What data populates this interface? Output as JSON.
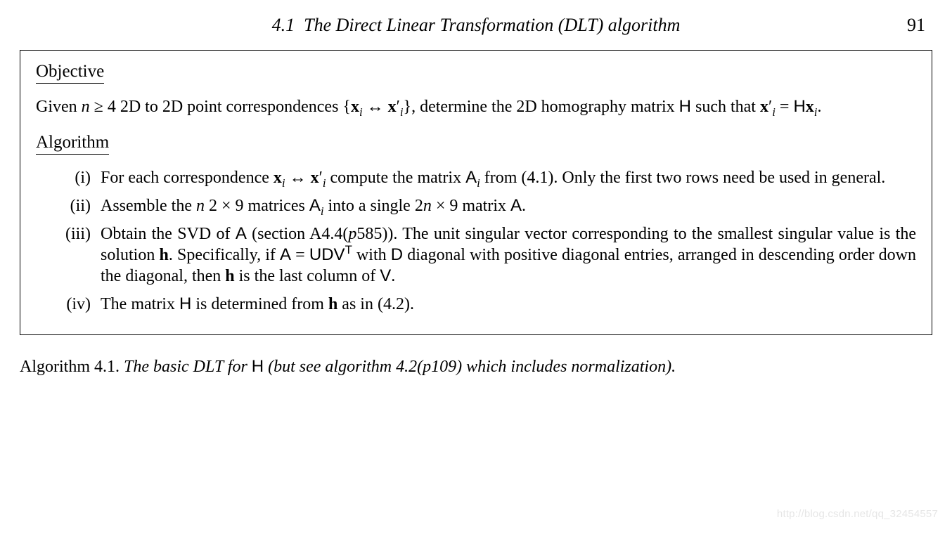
{
  "header": {
    "section_number": "4.1",
    "section_title": "The Direct Linear Transformation (DLT) algorithm",
    "page_number": "91"
  },
  "box": {
    "objective_label": "Objective",
    "objective_text_parts": {
      "p1": "Given ",
      "n": "n",
      "geq": " ≥ 4 2D to 2D point correspondences {",
      "x": "x",
      "sub_i": "i",
      "arrow": " ↔ ",
      "xprime": "x",
      "prime": "′",
      "p2": "}, determine the 2D homography matrix ",
      "H": "H",
      "p3": " such that ",
      "eq": " = ",
      "dot": "."
    },
    "algorithm_label": "Algorithm",
    "steps": [
      {
        "num": "(i)",
        "parts": {
          "a": "For each correspondence ",
          "b": " compute the matrix ",
          "Ai": "A",
          "c": " from (4.1). Only the first two rows need be used in general."
        }
      },
      {
        "num": "(ii)",
        "parts": {
          "a": "Assemble the ",
          "n": "n",
          "b": " 2 × 9 matrices ",
          "Ai": "A",
          "c": " into a single 2",
          "n2": "n",
          "d": " × 9 matrix ",
          "A": "A",
          "e": "."
        }
      },
      {
        "num": "(iii)",
        "parts": {
          "a": "Obtain the SVD of ",
          "A": "A",
          "b": " (section A4.4(",
          "p": "p",
          "pg": "585",
          "c": ")). The unit singular vector corresponding to the smallest singular value is the solution ",
          "h": "h",
          "d": ". Specifically, if ",
          "A2": "A",
          "eq": " = ",
          "U": "U",
          "D": "D",
          "V": "V",
          "T": "T",
          "e": " with ",
          "D2": "D",
          "f": " diagonal with positive diagonal entries, arranged in descending order down the diagonal, then ",
          "h2": "h",
          "g": " is the last column of ",
          "V2": "V",
          "h3": "."
        }
      },
      {
        "num": "(iv)",
        "parts": {
          "a": "The matrix ",
          "H": "H",
          "b": " is determined from ",
          "h": "h",
          "c": " as in (4.2)."
        }
      }
    ]
  },
  "caption": {
    "label": "Algorithm 4.1.",
    "text1": "The basic DLT for ",
    "H": "H",
    "text2": " (but see algorithm 4.2(p109) which includes normalization).",
    "p": "p",
    "pg": "109",
    "text2a": " (but see algorithm 4.2(",
    "text2b": ") which includes normalization)."
  },
  "watermark": "http://blog.csdn.net/qq_32454557"
}
